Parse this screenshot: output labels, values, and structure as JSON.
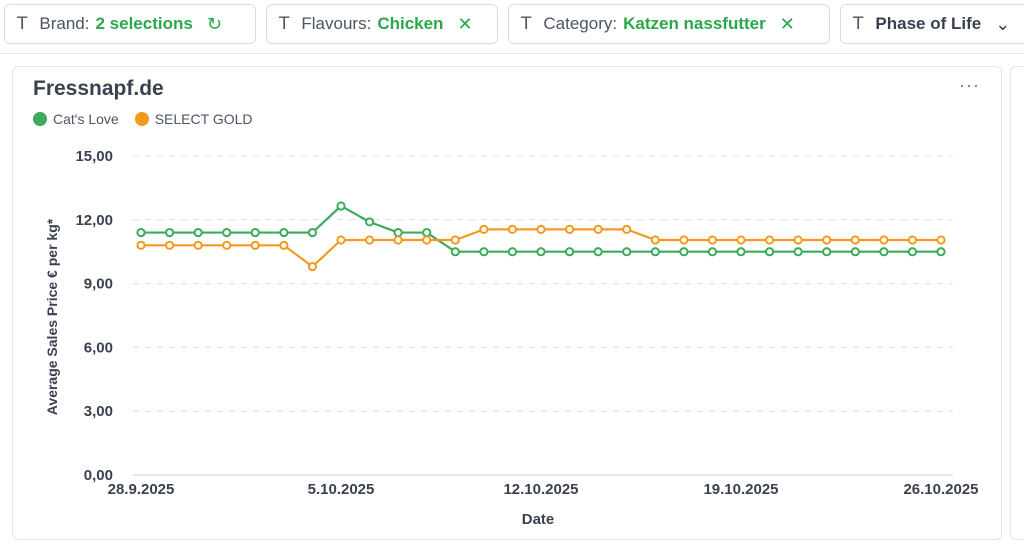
{
  "filters": [
    {
      "label": "Brand:",
      "value": "2 selections",
      "action_icon": "refresh-icon",
      "action_glyph": "↻"
    },
    {
      "label": "Flavours:",
      "value": "Chicken",
      "action_icon": "close-icon",
      "action_glyph": "✕"
    },
    {
      "label": "Category:",
      "value": "Katzen nassfutter",
      "action_icon": "close-icon",
      "action_glyph": "✕"
    },
    {
      "label": "",
      "value": "Phase of Life",
      "action_icon": "chevron-down-icon",
      "action_glyph": "⌄"
    }
  ],
  "card": {
    "title": "Fressnapf.de",
    "more_glyph": "···"
  },
  "colors": {
    "accent": "#2aa84a",
    "series1": "#3daa5c",
    "series2": "#f39a1e"
  },
  "chart_data": {
    "type": "line",
    "title": "Fressnapf.de",
    "xlabel": "Date",
    "ylabel": "Average Sales Price € per kg*",
    "ylim": [
      0,
      15
    ],
    "yticks": [
      "0,00",
      "3,00",
      "6,00",
      "9,00",
      "12,00",
      "15,00"
    ],
    "x_tick_labels": [
      "28.9.2025",
      "5.10.2025",
      "12.10.2025",
      "19.10.2025",
      "26.10.2025"
    ],
    "x_tick_index": [
      0,
      7,
      14,
      21,
      28
    ],
    "legend_position": "top-left",
    "grid": true,
    "series": [
      {
        "name": "Cat's Love",
        "color": "#3daa5c",
        "values": [
          11.4,
          11.4,
          11.4,
          11.4,
          11.4,
          11.4,
          11.4,
          12.65,
          11.9,
          11.4,
          11.4,
          10.5,
          10.5,
          10.5,
          10.5,
          10.5,
          10.5,
          10.5,
          10.5,
          10.5,
          10.5,
          10.5,
          10.5,
          10.5,
          10.5,
          10.5,
          10.5,
          10.5,
          10.5
        ]
      },
      {
        "name": "SELECT GOLD",
        "color": "#f39a1e",
        "values": [
          10.8,
          10.8,
          10.8,
          10.8,
          10.8,
          10.8,
          9.8,
          11.05,
          11.05,
          11.05,
          11.05,
          11.05,
          11.55,
          11.55,
          11.55,
          11.55,
          11.55,
          11.55,
          11.05,
          11.05,
          11.05,
          11.05,
          11.05,
          11.05,
          11.05,
          11.05,
          11.05,
          11.05,
          11.05
        ]
      }
    ]
  }
}
